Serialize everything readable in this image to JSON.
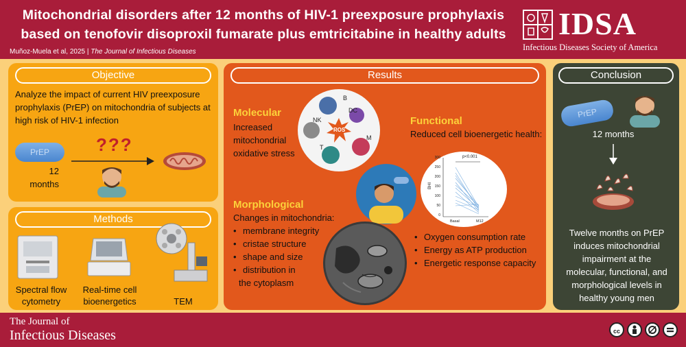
{
  "header": {
    "title": "Mitochondrial disorders after 12 months of HIV-1 preexposure prophylaxis based on tenofovir disoproxil fumarate plus emtricitabine in healthy adults",
    "authors": "Muñoz-Muela et al, 2025",
    "separator": "|",
    "journal": "The Journal of Infectious Diseases",
    "logo_word": "IDSA",
    "logo_subtitle": "Infectious Diseases Society of America"
  },
  "objective": {
    "heading": "Objective",
    "text": "Analyze the impact of current HIV  preexposure prophylaxis (PrEP) on mitochondria of subjects at high risk of HIV-1 infection",
    "pill_label": "PrEP",
    "duration": "12 months",
    "question_marks": "???"
  },
  "methods": {
    "heading": "Methods",
    "items": [
      "Spectral flow cytometry",
      "Real-time cell bioenergetics",
      "TEM"
    ]
  },
  "results": {
    "heading": "Results",
    "molecular": {
      "heading": "Molecular",
      "text": "Increased mitochondrial oxidative stress",
      "cells": [
        "B",
        "DC",
        "NK",
        "M",
        "T"
      ],
      "ros_label": "ROS"
    },
    "functional": {
      "heading": "Functional",
      "text": "Reduced cell bioenergetic health:",
      "chart": {
        "pvalue": "p<0.001",
        "ylabel": "BHI",
        "yticks": [
          "300",
          "250",
          "200",
          "150",
          "100",
          "50",
          "0"
        ],
        "xticks": [
          "Basal",
          "M12"
        ]
      },
      "bullets": [
        "Oxygen consumption rate",
        "Energy as ATP production",
        "Energetic response capacity"
      ]
    },
    "morphological": {
      "heading": "Morphological",
      "intro": "Changes in mitochondria:",
      "bullets": [
        "membrane integrity",
        "cristae structure",
        "shape and size",
        "distribution in"
      ],
      "last_line": "the cytoplasm"
    }
  },
  "conclusion": {
    "heading": "Conclusion",
    "pill_label": "PrEP",
    "duration": "12 months",
    "text": "Twelve months on PrEP induces mitochondrial impairment at the molecular, functional, and morphological levels in healthy young men"
  },
  "footer": {
    "journal_line1": "The Journal of",
    "journal_line2": "Infectious Diseases",
    "license_icons": [
      "cc-icon",
      "by-icon",
      "nd-icon",
      "nc-icon"
    ]
  },
  "colors": {
    "brand": "#a91d3a",
    "background": "#fbd07a",
    "objective": "#f7a512",
    "results": "#e2581c",
    "conclusion": "#3d4535",
    "pill": "#5b93d6"
  }
}
